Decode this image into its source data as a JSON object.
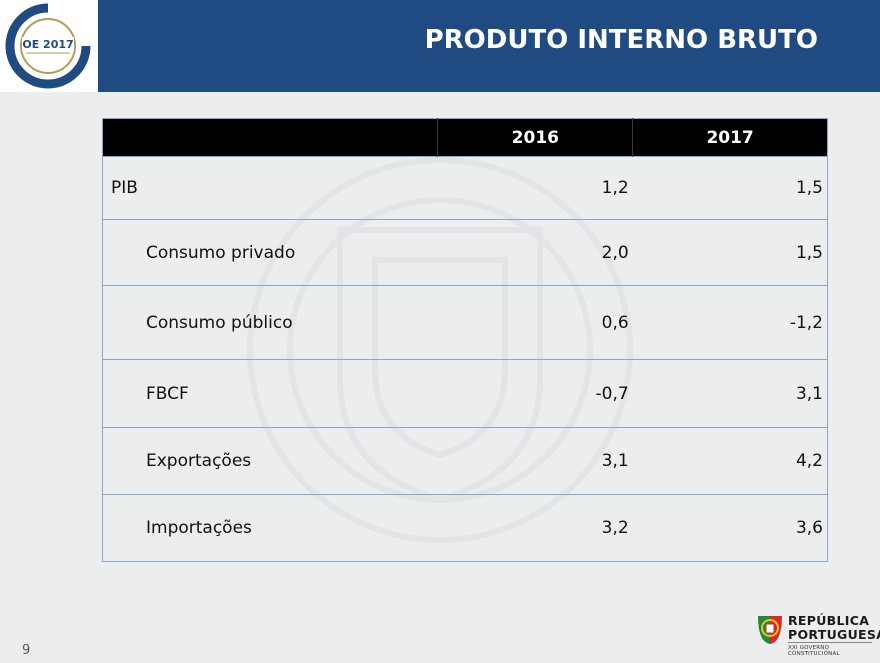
{
  "header": {
    "title": "PRODUTO INTERNO BRUTO",
    "logo": {
      "badge_text": "OE 2017",
      "icon": "oe-2017-logo-icon"
    },
    "bar_color": "#1f4a82"
  },
  "table": {
    "columns": [
      "",
      "2016",
      "2017"
    ],
    "rows": [
      {
        "label": "PIB",
        "v2016": "1,2",
        "v2017": "1,5"
      },
      {
        "label": "Consumo privado",
        "v2016": "2,0",
        "v2017": "1,5"
      },
      {
        "label": "Consumo público",
        "v2016": "0,6",
        "v2017": "-1,2"
      },
      {
        "label": "FBCF",
        "v2016": "-0,7",
        "v2017": "3,1"
      },
      {
        "label": "Exportações",
        "v2016": "3,1",
        "v2017": "4,2"
      },
      {
        "label": "Importações",
        "v2016": "3,2",
        "v2017": "3,6"
      }
    ]
  },
  "footer": {
    "page_number": "9",
    "brand_line1": "REPÚBLICA",
    "brand_line2": "PORTUGUESA",
    "brand_sub": "XXI GOVERNO CONSTITUCIONAL",
    "brand_icon": "portuguese-emblem-icon"
  }
}
